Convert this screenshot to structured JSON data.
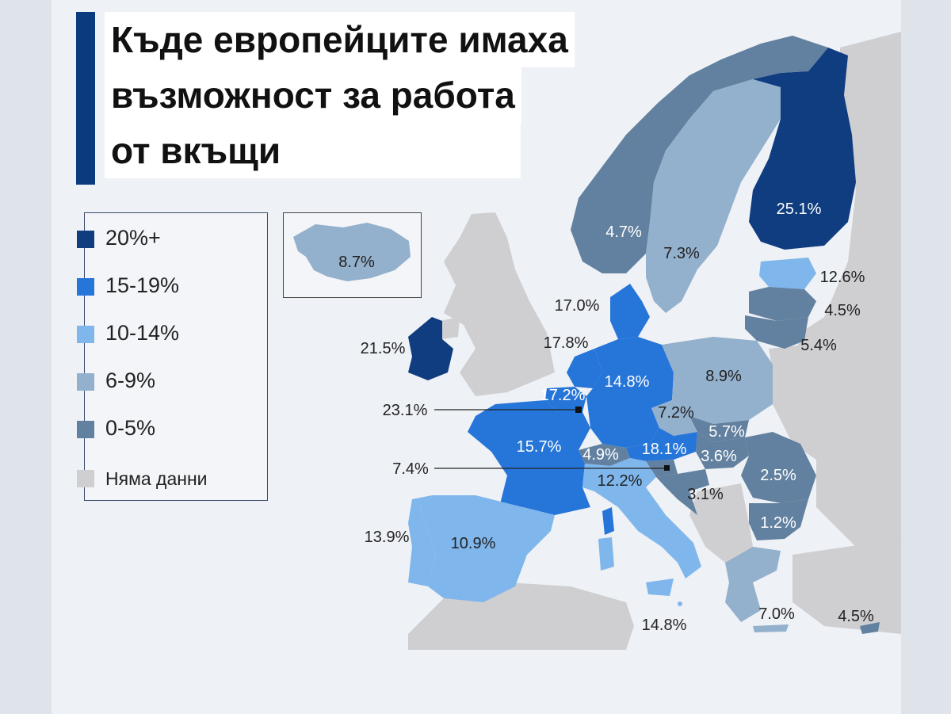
{
  "title": {
    "line1": "Къде европейците имаха",
    "line2": "възможност за работа",
    "line3": "от вкъщи"
  },
  "colors": {
    "c20plus": "#0f3d80",
    "c15_19": "#2675d8",
    "c10_14": "#7fb6ec",
    "c6_9": "#93b0cc",
    "c0_5": "#62809f",
    "nodata": "#cfcfd2",
    "sea": "#eef1f5"
  },
  "legend": [
    {
      "label": "20%+",
      "color": "#0f3d80"
    },
    {
      "label": "15-19%",
      "color": "#2675d8"
    },
    {
      "label": "10-14%",
      "color": "#7fb6ec"
    },
    {
      "label": "6-9%",
      "color": "#93b0cc"
    },
    {
      "label": "0-5%",
      "color": "#62809f"
    },
    {
      "label": "Няма данни",
      "color": "#cfcfd2"
    }
  ],
  "values": {
    "finland": "25.1%",
    "norway": "4.7%",
    "sweden": "7.3%",
    "estonia": "12.6%",
    "latvia": "4.5%",
    "lithuania": "5.4%",
    "denmark": "17.0%",
    "netherlands": "17.8%",
    "ireland": "21.5%",
    "belgium": "17.2%",
    "luxembourg": "23.1%",
    "germany": "14.8%",
    "poland": "8.9%",
    "czechia": "7.2%",
    "slovakia": "5.7%",
    "hungary": "3.6%",
    "austria": "18.1%",
    "switzerland": "4.9%",
    "france": "15.7%",
    "slovenia": "7.4%",
    "italy": "12.2%",
    "croatia": "3.1%",
    "romania": "2.5%",
    "bulgaria": "1.2%",
    "spain": "10.9%",
    "portugal": "13.9%",
    "malta": "14.8%",
    "greece": "7.0%",
    "cyprus": "4.5%",
    "iceland": "8.7%"
  }
}
